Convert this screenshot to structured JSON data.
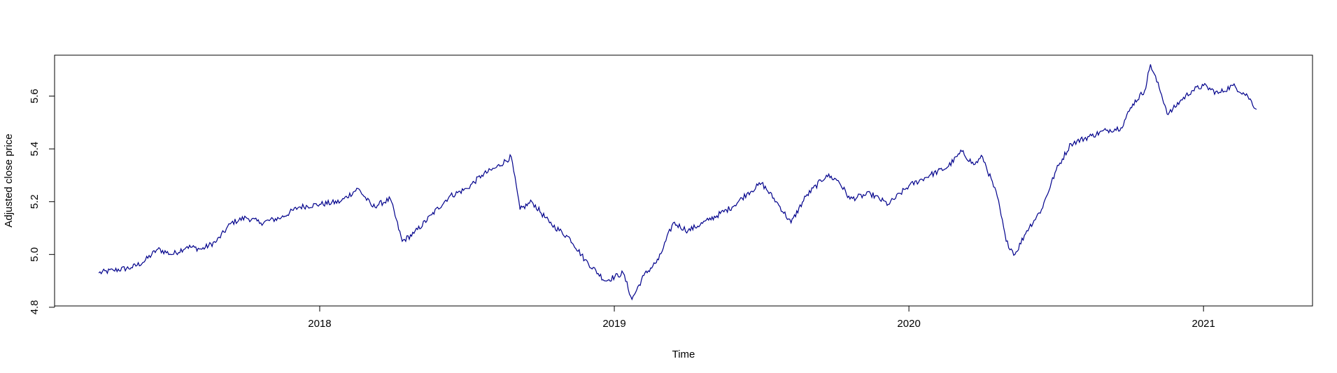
{
  "chart_data": {
    "type": "line",
    "title": "",
    "xlabel": "Time",
    "ylabel": "Adjusted close price",
    "xlim": [
      2017.1,
      2021.37
    ],
    "ylim": [
      4.805,
      5.755
    ],
    "grid": false,
    "legend": "none",
    "x_ticks": [
      {
        "value": 2018,
        "label": "2018"
      },
      {
        "value": 2019,
        "label": "2019"
      },
      {
        "value": 2020,
        "label": "2020"
      },
      {
        "value": 2021,
        "label": "2021"
      }
    ],
    "y_ticks": [
      {
        "value": 4.8,
        "label": "4.8"
      },
      {
        "value": 5.0,
        "label": "5.0"
      },
      {
        "value": 5.2,
        "label": "5.2"
      },
      {
        "value": 5.4,
        "label": "5.4"
      },
      {
        "value": 5.6,
        "label": "5.6"
      }
    ],
    "series": [
      {
        "color": "#00008B",
        "points": [
          [
            2017.25,
            4.93
          ],
          [
            2017.3,
            4.94
          ],
          [
            2017.36,
            4.95
          ],
          [
            2017.4,
            4.97
          ],
          [
            2017.45,
            5.02
          ],
          [
            2017.5,
            5.0
          ],
          [
            2017.55,
            5.03
          ],
          [
            2017.6,
            5.02
          ],
          [
            2017.65,
            5.05
          ],
          [
            2017.7,
            5.12
          ],
          [
            2017.75,
            5.14
          ],
          [
            2017.8,
            5.12
          ],
          [
            2017.87,
            5.14
          ],
          [
            2017.93,
            5.18
          ],
          [
            2018.0,
            5.19
          ],
          [
            2018.07,
            5.2
          ],
          [
            2018.13,
            5.25
          ],
          [
            2018.18,
            5.18
          ],
          [
            2018.24,
            5.21
          ],
          [
            2018.28,
            5.05
          ],
          [
            2018.32,
            5.08
          ],
          [
            2018.38,
            5.15
          ],
          [
            2018.44,
            5.22
          ],
          [
            2018.5,
            5.25
          ],
          [
            2018.55,
            5.3
          ],
          [
            2018.6,
            5.33
          ],
          [
            2018.65,
            5.37
          ],
          [
            2018.68,
            5.17
          ],
          [
            2018.72,
            5.2
          ],
          [
            2018.78,
            5.12
          ],
          [
            2018.85,
            5.06
          ],
          [
            2018.9,
            4.98
          ],
          [
            2018.97,
            4.9
          ],
          [
            2019.03,
            4.93
          ],
          [
            2019.06,
            4.83
          ],
          [
            2019.1,
            4.92
          ],
          [
            2019.15,
            4.98
          ],
          [
            2019.2,
            5.12
          ],
          [
            2019.25,
            5.09
          ],
          [
            2019.32,
            5.13
          ],
          [
            2019.4,
            5.18
          ],
          [
            2019.45,
            5.23
          ],
          [
            2019.5,
            5.27
          ],
          [
            2019.55,
            5.2
          ],
          [
            2019.6,
            5.12
          ],
          [
            2019.65,
            5.22
          ],
          [
            2019.72,
            5.3
          ],
          [
            2019.76,
            5.28
          ],
          [
            2019.8,
            5.21
          ],
          [
            2019.87,
            5.23
          ],
          [
            2019.93,
            5.19
          ],
          [
            2020.0,
            5.26
          ],
          [
            2020.07,
            5.3
          ],
          [
            2020.13,
            5.33
          ],
          [
            2020.18,
            5.39
          ],
          [
            2020.22,
            5.34
          ],
          [
            2020.25,
            5.37
          ],
          [
            2020.3,
            5.22
          ],
          [
            2020.33,
            5.05
          ],
          [
            2020.36,
            5.0
          ],
          [
            2020.4,
            5.09
          ],
          [
            2020.45,
            5.17
          ],
          [
            2020.5,
            5.32
          ],
          [
            2020.55,
            5.42
          ],
          [
            2020.62,
            5.45
          ],
          [
            2020.67,
            5.47
          ],
          [
            2020.72,
            5.48
          ],
          [
            2020.76,
            5.57
          ],
          [
            2020.8,
            5.62
          ],
          [
            2020.82,
            5.72
          ],
          [
            2020.85,
            5.63
          ],
          [
            2020.88,
            5.53
          ],
          [
            2020.92,
            5.58
          ],
          [
            2020.96,
            5.62
          ],
          [
            2021.0,
            5.64
          ],
          [
            2021.05,
            5.61
          ],
          [
            2021.1,
            5.64
          ],
          [
            2021.15,
            5.6
          ],
          [
            2021.18,
            5.55
          ]
        ]
      }
    ]
  }
}
